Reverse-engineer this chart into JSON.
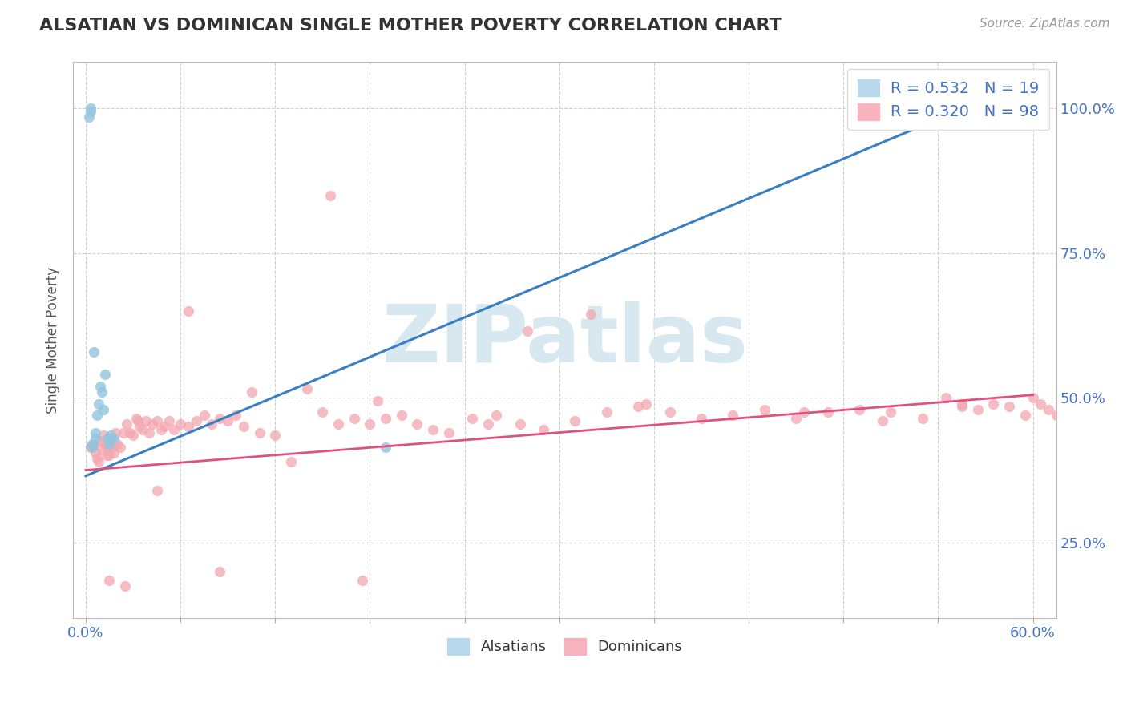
{
  "title": "ALSATIAN VS DOMINICAN SINGLE MOTHER POVERTY CORRELATION CHART",
  "source": "Source: ZipAtlas.com",
  "ylabel": "Single Mother Poverty",
  "xlim": [
    -0.008,
    0.615
  ],
  "ylim": [
    0.12,
    1.08
  ],
  "ytick_positions": [
    0.25,
    0.5,
    0.75,
    1.0
  ],
  "ytick_labels": [
    "25.0%",
    "50.0%",
    "75.0%",
    "100.0%"
  ],
  "alsatian_R": 0.532,
  "alsatian_N": 19,
  "dominican_R": 0.32,
  "dominican_N": 98,
  "alsatian_color": "#92c5de",
  "dominican_color": "#f4a6b0",
  "alsatian_line_color": "#3a7fc1",
  "dominican_line_color": "#e05080",
  "legend_text_color": "#4472C4",
  "axis_text_color": "#4472C4",
  "background_color": "#ffffff",
  "watermark_text": "ZIPatlas",
  "watermark_color": "#d8e8f0",
  "grid_color": "#cccccc",
  "alsatian_line_x0": 0.0,
  "alsatian_line_y0": 0.365,
  "alsatian_line_x1": 0.6,
  "alsatian_line_y1": 1.05,
  "dominican_line_x0": 0.0,
  "dominican_line_y0": 0.375,
  "dominican_line_x1": 0.6,
  "dominican_line_y1": 0.505,
  "alsatian_x": [
    0.002,
    0.003,
    0.003,
    0.004,
    0.004,
    0.005,
    0.006,
    0.006,
    0.007,
    0.008,
    0.009,
    0.01,
    0.011,
    0.012,
    0.014,
    0.015,
    0.016,
    0.018,
    0.19
  ],
  "alsatian_y": [
    0.985,
    0.995,
    1.0,
    0.42,
    0.415,
    0.58,
    0.44,
    0.43,
    0.47,
    0.49,
    0.52,
    0.51,
    0.48,
    0.54,
    0.43,
    0.42,
    0.435,
    0.43,
    0.415
  ],
  "dominican_x": [
    0.003,
    0.005,
    0.006,
    0.007,
    0.008,
    0.009,
    0.01,
    0.011,
    0.012,
    0.013,
    0.014,
    0.015,
    0.016,
    0.017,
    0.018,
    0.019,
    0.02,
    0.022,
    0.024,
    0.026,
    0.028,
    0.03,
    0.032,
    0.034,
    0.036,
    0.038,
    0.04,
    0.042,
    0.045,
    0.048,
    0.05,
    0.053,
    0.056,
    0.06,
    0.065,
    0.07,
    0.075,
    0.08,
    0.085,
    0.09,
    0.095,
    0.1,
    0.11,
    0.12,
    0.13,
    0.14,
    0.15,
    0.16,
    0.17,
    0.18,
    0.19,
    0.2,
    0.21,
    0.22,
    0.23,
    0.245,
    0.26,
    0.275,
    0.29,
    0.31,
    0.33,
    0.35,
    0.37,
    0.39,
    0.41,
    0.43,
    0.45,
    0.47,
    0.49,
    0.51,
    0.53,
    0.545,
    0.555,
    0.565,
    0.575,
    0.585,
    0.595,
    0.6,
    0.605,
    0.61,
    0.615,
    0.155,
    0.32,
    0.28,
    0.175,
    0.085,
    0.045,
    0.025,
    0.015,
    0.033,
    0.065,
    0.105,
    0.185,
    0.255,
    0.355,
    0.455,
    0.505,
    0.555
  ],
  "dominican_y": [
    0.415,
    0.42,
    0.405,
    0.395,
    0.39,
    0.425,
    0.41,
    0.435,
    0.42,
    0.4,
    0.415,
    0.4,
    0.43,
    0.415,
    0.405,
    0.44,
    0.42,
    0.415,
    0.44,
    0.455,
    0.44,
    0.435,
    0.465,
    0.45,
    0.445,
    0.46,
    0.44,
    0.455,
    0.46,
    0.445,
    0.45,
    0.46,
    0.445,
    0.455,
    0.45,
    0.46,
    0.47,
    0.455,
    0.465,
    0.46,
    0.47,
    0.45,
    0.44,
    0.435,
    0.39,
    0.515,
    0.475,
    0.455,
    0.465,
    0.455,
    0.465,
    0.47,
    0.455,
    0.445,
    0.44,
    0.465,
    0.47,
    0.455,
    0.445,
    0.46,
    0.475,
    0.485,
    0.475,
    0.465,
    0.47,
    0.48,
    0.465,
    0.475,
    0.48,
    0.475,
    0.465,
    0.5,
    0.485,
    0.48,
    0.49,
    0.485,
    0.47,
    0.5,
    0.49,
    0.48,
    0.47,
    0.85,
    0.645,
    0.615,
    0.185,
    0.2,
    0.34,
    0.175,
    0.185,
    0.46,
    0.65,
    0.51,
    0.495,
    0.455,
    0.49,
    0.475,
    0.46,
    0.49
  ]
}
